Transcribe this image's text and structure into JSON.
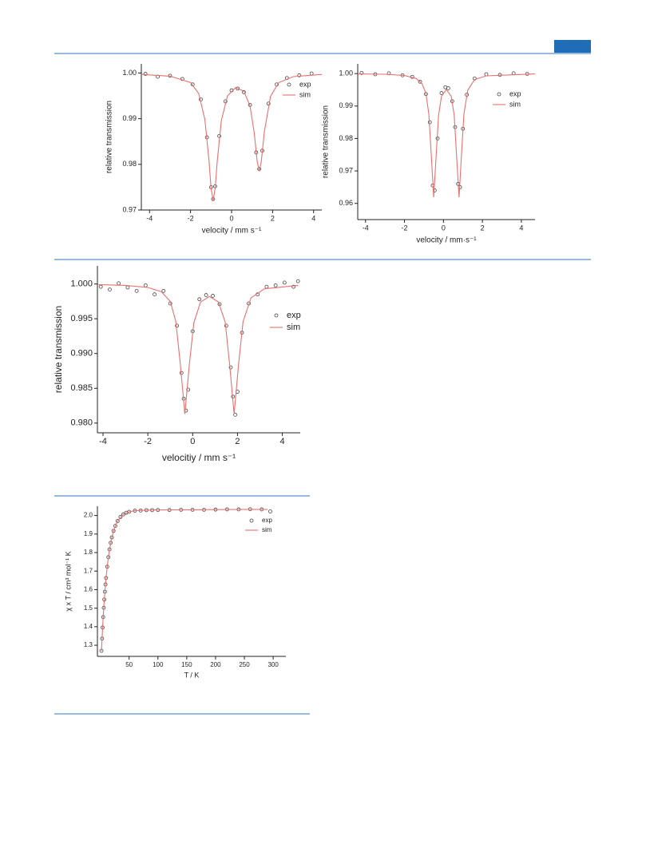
{
  "chart_data": [
    {
      "type": "line",
      "x_label": "velocity / mm s⁻¹",
      "y_label": "relative transmission",
      "xlim": [
        -4.4,
        4.4
      ],
      "ylim": [
        0.97,
        1.002
      ],
      "xticks": [
        -4,
        -2,
        0,
        2,
        4
      ],
      "yticks": [
        0.97,
        0.98,
        0.99,
        {
          "value": 1,
          "label": "1.00"
        }
      ],
      "legend": "upper right",
      "series": [
        {
          "name": "exp",
          "mode": "markers",
          "color": "#444444",
          "x": [
            -4.2,
            -3.6,
            -3.0,
            -2.4,
            -1.9,
            -1.5,
            -1.2,
            -1.0,
            -0.9,
            -0.8,
            -0.6,
            -0.3,
            0.0,
            0.3,
            0.6,
            0.9,
            1.2,
            1.35,
            1.5,
            1.8,
            2.2,
            2.7,
            3.3,
            3.9
          ],
          "values": [
            0.9998,
            0.9992,
            0.9994,
            0.9987,
            0.9975,
            0.9942,
            0.9859,
            0.975,
            0.9724,
            0.9752,
            0.9862,
            0.9938,
            0.9962,
            0.9966,
            0.9958,
            0.993,
            0.9826,
            0.979,
            0.983,
            0.9933,
            0.9975,
            0.9989,
            0.9995,
            0.9999
          ]
        },
        {
          "name": "sim",
          "mode": "line",
          "color": "#e8706f",
          "x": [
            -4.4,
            -3,
            -2,
            -1.6,
            -1.3,
            -1.1,
            -1.0,
            -0.9,
            -0.8,
            -0.7,
            -0.5,
            -0.2,
            0.2,
            0.6,
            0.9,
            1.1,
            1.25,
            1.35,
            1.45,
            1.6,
            1.9,
            2.3,
            3,
            4.4
          ],
          "values": [
            0.9997,
            0.9993,
            0.9979,
            0.9955,
            0.9898,
            0.9807,
            0.9748,
            0.9721,
            0.9748,
            0.9806,
            0.9896,
            0.995,
            0.9968,
            0.996,
            0.9928,
            0.987,
            0.9806,
            0.9785,
            0.9806,
            0.9872,
            0.9949,
            0.9979,
            0.9992,
            0.9997
          ]
        }
      ]
    },
    {
      "type": "line",
      "x_label": "velocity / mm·s⁻¹",
      "y_label": "relative transmission",
      "xlim": [
        -4.4,
        4.7
      ],
      "ylim": [
        0.955,
        1.003
      ],
      "xticks": [
        -4,
        -2,
        0,
        2,
        4
      ],
      "yticks": [
        0.96,
        0.97,
        0.98,
        0.99,
        {
          "value": 1,
          "label": "1.00"
        }
      ],
      "legend": "upper right",
      "series": [
        {
          "name": "exp",
          "mode": "markers",
          "color": "#444444",
          "x": [
            -4.2,
            -3.5,
            -2.8,
            -2.1,
            -1.6,
            -1.2,
            -0.9,
            -0.7,
            -0.55,
            -0.45,
            -0.3,
            -0.1,
            0.1,
            0.25,
            0.45,
            0.6,
            0.75,
            0.85,
            1.0,
            1.2,
            1.6,
            2.2,
            2.9,
            3.6,
            4.3
          ],
          "values": [
            1.0002,
            0.9998,
            1.0001,
            0.9995,
            0.999,
            0.9975,
            0.9937,
            0.985,
            0.9655,
            0.964,
            0.98,
            0.994,
            0.9958,
            0.9955,
            0.9915,
            0.9835,
            0.966,
            0.965,
            0.983,
            0.9935,
            0.9985,
            0.9998,
            0.9996,
            1.0001,
            0.9999
          ]
        },
        {
          "name": "sim",
          "mode": "line",
          "color": "#e8706f",
          "x": [
            -4.4,
            -3,
            -2,
            -1.4,
            -1.1,
            -0.9,
            -0.75,
            -0.62,
            -0.5,
            -0.38,
            -0.25,
            -0.1,
            0.15,
            0.4,
            0.55,
            0.68,
            0.8,
            0.92,
            1.05,
            1.25,
            1.6,
            2.2,
            3,
            4.7
          ],
          "values": [
            0.9999,
            0.9998,
            0.9994,
            0.9985,
            0.9969,
            0.9939,
            0.9876,
            0.9745,
            0.9619,
            0.9742,
            0.9871,
            0.993,
            0.9951,
            0.993,
            0.9871,
            0.9742,
            0.9619,
            0.9745,
            0.9876,
            0.9949,
            0.9982,
            0.9993,
            0.9995,
            0.9999
          ]
        }
      ]
    },
    {
      "type": "line",
      "x_label": "velocitiy / mm s⁻¹",
      "y_label": "relative transmission",
      "xlim": [
        -4.25,
        4.8
      ],
      "ylim": [
        0.9786,
        1.0026
      ],
      "xticks": [
        -4,
        -2,
        0,
        2,
        4
      ],
      "yticks": [
        {
          "value": 0.98,
          "label": "0.980"
        },
        0.985,
        {
          "value": 0.99,
          "label": "0.990"
        },
        0.995,
        {
          "value": 1,
          "label": "1.000"
        }
      ],
      "legend": "upper right",
      "series": [
        {
          "name": "exp",
          "mode": "markers",
          "color": "#444444",
          "x": [
            -4.1,
            -3.7,
            -3.3,
            -2.9,
            -2.5,
            -2.1,
            -1.7,
            -1.3,
            -1.0,
            -0.7,
            -0.5,
            -0.4,
            -0.3,
            -0.2,
            0.0,
            0.3,
            0.6,
            0.9,
            1.2,
            1.5,
            1.7,
            1.8,
            1.9,
            2.0,
            2.2,
            2.5,
            2.9,
            3.3,
            3.7,
            4.1,
            4.5,
            4.7
          ],
          "values": [
            0.9996,
            0.9992,
            1.0001,
            0.9995,
            0.999,
            0.9998,
            0.9985,
            0.999,
            0.9972,
            0.994,
            0.9872,
            0.9835,
            0.9818,
            0.9848,
            0.9932,
            0.9978,
            0.9984,
            0.9983,
            0.9971,
            0.994,
            0.988,
            0.9838,
            0.9812,
            0.9845,
            0.993,
            0.9972,
            0.9985,
            0.9996,
            0.9998,
            1.0002,
            0.9996,
            1.0004
          ]
        },
        {
          "name": "sim",
          "mode": "line",
          "color": "#e8706f",
          "x": [
            -4.2,
            -3,
            -2,
            -1.4,
            -1,
            -0.75,
            -0.55,
            -0.35,
            -0.15,
            0.05,
            0.35,
            0.75,
            1.15,
            1.45,
            1.65,
            1.85,
            2.05,
            2.25,
            2.6,
            3.2,
            4.7
          ],
          "values": [
            0.9999,
            0.9998,
            0.9995,
            0.9989,
            0.9975,
            0.9946,
            0.9885,
            0.9813,
            0.9884,
            0.9944,
            0.9974,
            0.9982,
            0.9974,
            0.9945,
            0.9884,
            0.9813,
            0.9885,
            0.9946,
            0.998,
            0.9993,
            0.9998
          ]
        }
      ]
    },
    {
      "type": "line",
      "x_label": "T / K",
      "y_label": "χ x T / cm³ mol⁻¹ K",
      "xlim": [
        -5,
        322
      ],
      "ylim": [
        1.24,
        2.05
      ],
      "xticks": [
        50,
        100,
        150,
        200,
        250,
        300
      ],
      "yticks": [
        1.3,
        1.4,
        1.5,
        1.6,
        1.7,
        1.8,
        1.9,
        {
          "value": 2,
          "label": "2.0"
        }
      ],
      "legend": "upper right",
      "series": [
        {
          "name": "exp",
          "mode": "markers",
          "color": "#444444",
          "x": [
            2,
            3,
            4,
            5,
            6,
            7,
            8,
            9,
            10,
            12,
            14,
            16,
            18,
            20,
            23,
            26,
            30,
            35,
            40,
            45,
            50,
            60,
            70,
            80,
            90,
            100,
            120,
            140,
            160,
            180,
            200,
            220,
            240,
            260,
            280,
            295
          ],
          "values": [
            1.27,
            1.336,
            1.396,
            1.452,
            1.502,
            1.547,
            1.589,
            1.628,
            1.663,
            1.724,
            1.775,
            1.817,
            1.853,
            1.882,
            1.917,
            1.944,
            1.97,
            1.992,
            2.006,
            2.015,
            2.02,
            2.026,
            2.027,
            2.029,
            2.029,
            2.03,
            2.03,
            2.031,
            2.031,
            2.031,
            2.032,
            2.033,
            2.033,
            2.034,
            2.033,
            2.022
          ]
        },
        {
          "name": "sim",
          "mode": "line",
          "color": "#e8706f",
          "x": [
            2,
            4,
            6,
            8,
            10,
            13,
            16,
            20,
            25,
            30,
            40,
            50,
            60,
            80,
            100,
            150,
            200,
            250,
            290
          ],
          "values": [
            1.27,
            1.396,
            1.502,
            1.589,
            1.663,
            1.75,
            1.817,
            1.882,
            1.936,
            1.97,
            2.006,
            2.02,
            2.026,
            2.029,
            2.03,
            2.031,
            2.032,
            2.033,
            2.033
          ]
        }
      ]
    }
  ]
}
